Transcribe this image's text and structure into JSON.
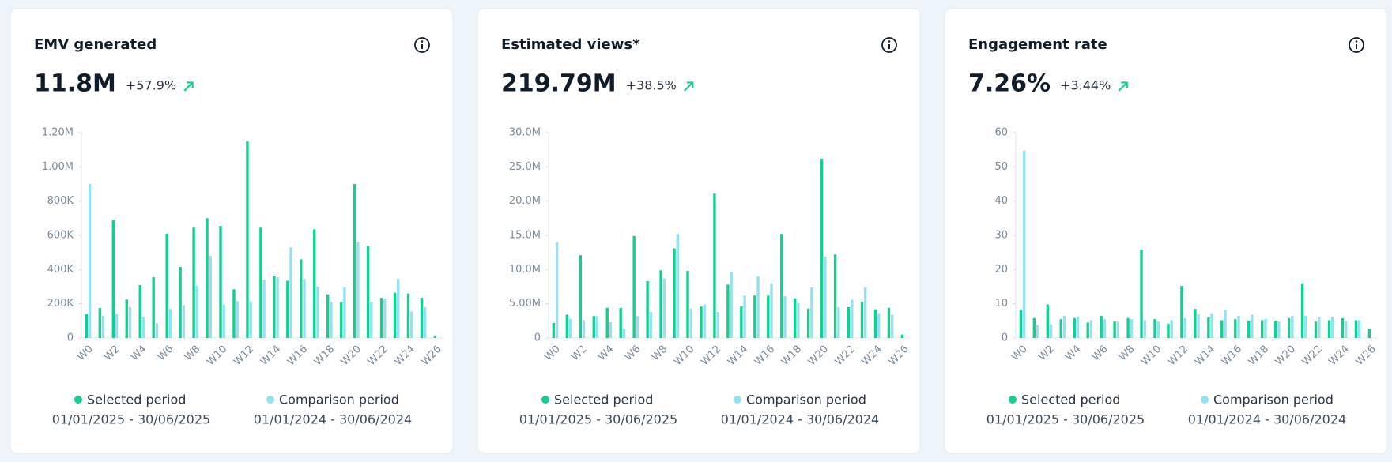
{
  "chart_data": [
    {
      "type": "bar",
      "title": "EMV generated",
      "headline": "11.8M",
      "change": "+57.9%",
      "categories": [
        "W0",
        null,
        "W2",
        null,
        "W4",
        null,
        "W6",
        null,
        "W8",
        null,
        "W10",
        null,
        "W12",
        null,
        "W14",
        null,
        "W16",
        null,
        "W18",
        null,
        "W20",
        null,
        "W22",
        null,
        "W24",
        null,
        "W26"
      ],
      "series": [
        {
          "name": "Selected period",
          "period": "01/01/2025 - 30/06/2025",
          "color": "#12d18e",
          "values": [
            140000,
            175000,
            690000,
            225000,
            310000,
            355000,
            610000,
            415000,
            645000,
            700000,
            655000,
            285000,
            1150000,
            645000,
            360000,
            335000,
            460000,
            635000,
            255000,
            210000,
            900000,
            535000,
            235000,
            265000,
            260000,
            235000,
            15000
          ]
        },
        {
          "name": "Comparison period",
          "period": "01/01/2024 - 30/06/2024",
          "color": "#93e1f2",
          "values": [
            900000,
            130000,
            140000,
            180000,
            120000,
            85000,
            170000,
            190000,
            305000,
            480000,
            195000,
            215000,
            215000,
            340000,
            355000,
            530000,
            345000,
            300000,
            210000,
            295000,
            560000,
            210000,
            230000,
            345000,
            155000,
            180000,
            null
          ]
        }
      ],
      "ylim": [
        0,
        1200000
      ],
      "yticks": [
        0,
        {
          "value": 200000,
          "label": "200K"
        },
        {
          "value": 400000,
          "label": "400K"
        },
        {
          "value": 600000,
          "label": "600K"
        },
        {
          "value": 800000,
          "label": "800K"
        },
        {
          "value": 1000000,
          "label": "1.00M"
        },
        {
          "value": 1200000,
          "label": "1.20M"
        }
      ],
      "grid": false
    },
    {
      "type": "bar",
      "title": "Estimated views*",
      "headline": "219.79M",
      "change": "+38.5%",
      "categories": [
        "W0",
        null,
        "W2",
        null,
        "W4",
        null,
        "W6",
        null,
        "W8",
        null,
        "W10",
        null,
        "W12",
        null,
        "W14",
        null,
        "W16",
        null,
        "W18",
        null,
        "W20",
        null,
        "W22",
        null,
        "W24",
        null,
        "W26"
      ],
      "series": [
        {
          "name": "Selected period",
          "period": "01/01/2025 - 30/06/2025",
          "color": "#12d18e",
          "values": [
            2200000,
            3400000,
            12100000,
            3200000,
            4400000,
            4400000,
            14900000,
            8300000,
            9900000,
            13100000,
            9800000,
            4600000,
            21100000,
            7800000,
            4600000,
            6200000,
            6200000,
            15200000,
            5800000,
            4300000,
            26200000,
            12200000,
            4500000,
            5300000,
            4200000,
            4400000,
            500000
          ]
        },
        {
          "name": "Comparison period",
          "period": "01/01/2024 - 30/06/2024",
          "color": "#93e1f2",
          "values": [
            14000000,
            2800000,
            2600000,
            3200000,
            2300000,
            1400000,
            3200000,
            3800000,
            8700000,
            15200000,
            4300000,
            4900000,
            3800000,
            9700000,
            6200000,
            9000000,
            8000000,
            6100000,
            5100000,
            7400000,
            11900000,
            4500000,
            5600000,
            7400000,
            3600000,
            3400000,
            null
          ]
        }
      ],
      "ylim": [
        0,
        30000000
      ],
      "yticks": [
        0,
        {
          "value": 5000000,
          "label": "5.00M"
        },
        {
          "value": 10000000,
          "label": "10.0M"
        },
        {
          "value": 15000000,
          "label": "15.0M"
        },
        {
          "value": 20000000,
          "label": "20.0M"
        },
        {
          "value": 25000000,
          "label": "25.0M"
        },
        {
          "value": 30000000,
          "label": "30.0M"
        }
      ],
      "grid": false
    },
    {
      "type": "bar",
      "title": "Engagement rate",
      "headline": "7.26%",
      "change": "+3.44%",
      "categories": [
        "W0",
        null,
        "W2",
        null,
        "W4",
        null,
        "W6",
        null,
        "W8",
        null,
        "W10",
        null,
        "W12",
        null,
        "W14",
        null,
        "W16",
        null,
        "W18",
        null,
        "W20",
        null,
        "W22",
        null,
        "W24",
        null,
        "W26"
      ],
      "series": [
        {
          "name": "Selected period",
          "period": "01/01/2025 - 30/06/2025",
          "color": "#12d18e",
          "values": [
            8.2,
            5.8,
            9.8,
            5.5,
            5.8,
            4.5,
            6.5,
            4.8,
            5.8,
            25.8,
            5.5,
            4.2,
            15.2,
            8.5,
            6.0,
            5.2,
            5.5,
            5.0,
            5.2,
            5.0,
            5.8,
            16.0,
            4.8,
            5.2,
            5.8,
            5.2,
            2.8
          ]
        },
        {
          "name": "Comparison period",
          "period": "01/01/2024 - 30/06/2024",
          "color": "#93e1f2",
          "values": [
            54.8,
            3.8,
            4.0,
            6.5,
            6.3,
            5.2,
            5.5,
            4.8,
            5.5,
            5.2,
            4.8,
            5.2,
            5.8,
            7.0,
            7.2,
            8.2,
            6.5,
            6.8,
            5.5,
            4.8,
            6.5,
            6.5,
            6.0,
            6.2,
            5.0,
            5.2,
            null
          ]
        }
      ],
      "ylim": [
        0,
        60
      ],
      "yticks": [
        0,
        10,
        20,
        30,
        40,
        50,
        60
      ],
      "grid": false
    }
  ]
}
